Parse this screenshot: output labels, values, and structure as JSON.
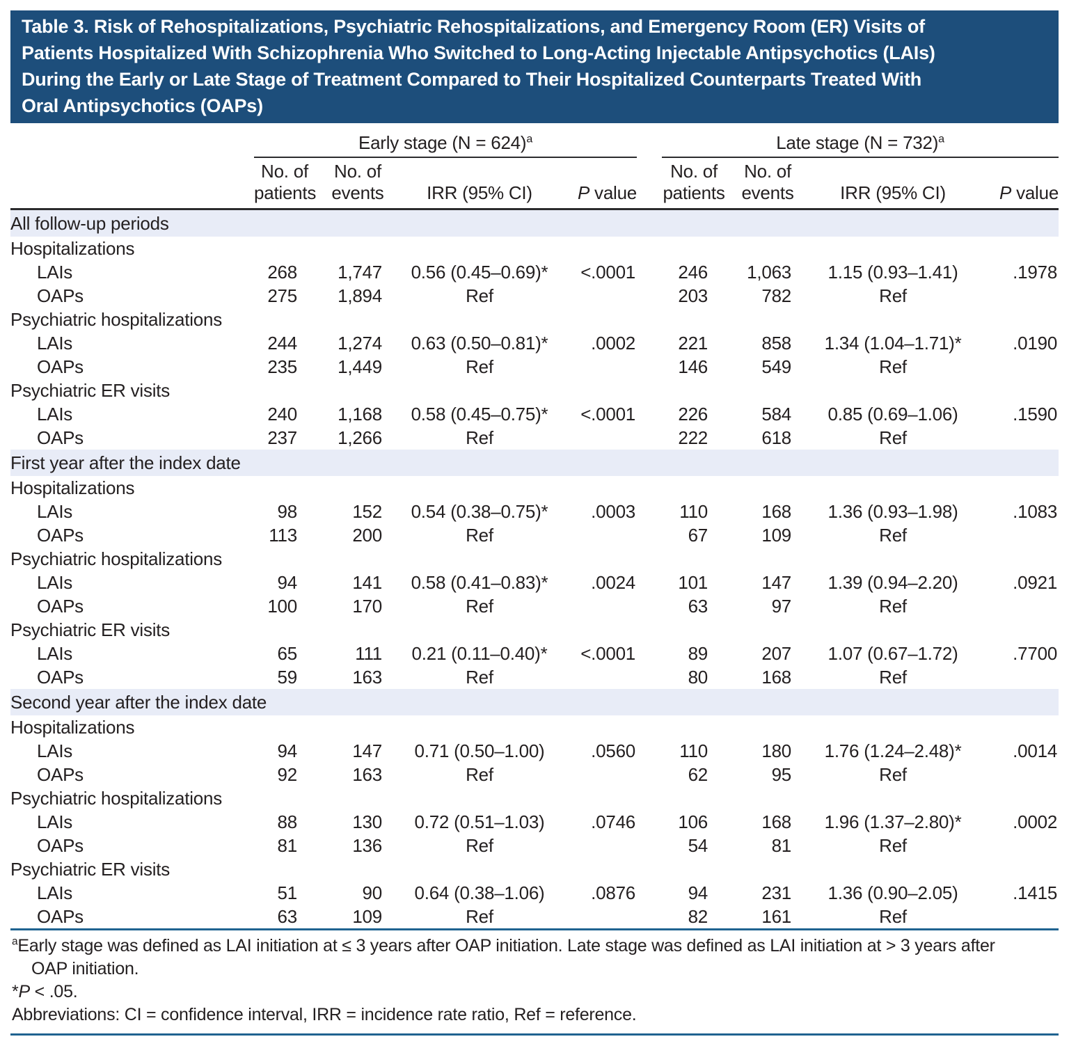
{
  "title": "Table 3. Risk of Rehospitalizations, Psychiatric Rehospitalizations, and Emergency Room (ER) Visits of\nPatients Hospitalized With Schizophrenia Who Switched to Long-Acting Injectable Antipsychotics (LAIs)\nDuring the Early or Late Stage of Treatment Compared to Their Hospitalized Counterparts Treated With\nOral Antipsychotics (OAPs)",
  "header": {
    "early_spanner": "Early stage (N = 624)",
    "late_spanner": "Late stage (N = 732)",
    "spanner_sup": "a",
    "col_patients": "No. of\npatients",
    "col_events": "No. of\nevents",
    "col_irr": "IRR (95% CI)",
    "col_p_italic": "P",
    "col_p_rest": " value"
  },
  "sections": [
    {
      "label": "All follow-up periods",
      "groups": [
        {
          "label": "Hospitalizations",
          "rows": [
            {
              "label": "LAIs",
              "early": {
                "patients": "268",
                "events": "1,747",
                "irr": "0.56 (0.45–0.69)*",
                "p": "<.0001"
              },
              "late": {
                "patients": "246",
                "events": "1,063",
                "irr": "1.15 (0.93–1.41)",
                "p": ".1978"
              }
            },
            {
              "label": "OAPs",
              "early": {
                "patients": "275",
                "events": "1,894",
                "irr": "Ref",
                "p": ""
              },
              "late": {
                "patients": "203",
                "events": "782",
                "irr": "Ref",
                "p": ""
              }
            }
          ]
        },
        {
          "label": "Psychiatric hospitalizations",
          "rows": [
            {
              "label": "LAIs",
              "early": {
                "patients": "244",
                "events": "1,274",
                "irr": "0.63 (0.50–0.81)*",
                "p": ".0002"
              },
              "late": {
                "patients": "221",
                "events": "858",
                "irr": "1.34 (1.04–1.71)*",
                "p": ".0190"
              }
            },
            {
              "label": "OAPs",
              "early": {
                "patients": "235",
                "events": "1,449",
                "irr": "Ref",
                "p": ""
              },
              "late": {
                "patients": "146",
                "events": "549",
                "irr": "Ref",
                "p": ""
              }
            }
          ]
        },
        {
          "label": "Psychiatric ER visits",
          "rows": [
            {
              "label": "LAIs",
              "early": {
                "patients": "240",
                "events": "1,168",
                "irr": "0.58 (0.45–0.75)*",
                "p": "<.0001"
              },
              "late": {
                "patients": "226",
                "events": "584",
                "irr": "0.85 (0.69–1.06)",
                "p": ".1590"
              }
            },
            {
              "label": "OAPs",
              "early": {
                "patients": "237",
                "events": "1,266",
                "irr": "Ref",
                "p": ""
              },
              "late": {
                "patients": "222",
                "events": "618",
                "irr": "Ref",
                "p": ""
              }
            }
          ]
        }
      ]
    },
    {
      "label": "First year after the index date",
      "groups": [
        {
          "label": "Hospitalizations",
          "rows": [
            {
              "label": "LAIs",
              "early": {
                "patients": "98",
                "events": "152",
                "irr": "0.54 (0.38–0.75)*",
                "p": ".0003"
              },
              "late": {
                "patients": "110",
                "events": "168",
                "irr": "1.36 (0.93–1.98)",
                "p": ".1083"
              }
            },
            {
              "label": "OAPs",
              "early": {
                "patients": "113",
                "events": "200",
                "irr": "Ref",
                "p": ""
              },
              "late": {
                "patients": "67",
                "events": "109",
                "irr": "Ref",
                "p": ""
              }
            }
          ]
        },
        {
          "label": "Psychiatric hospitalizations",
          "rows": [
            {
              "label": "LAIs",
              "early": {
                "patients": "94",
                "events": "141",
                "irr": "0.58 (0.41–0.83)*",
                "p": ".0024"
              },
              "late": {
                "patients": "101",
                "events": "147",
                "irr": "1.39 (0.94–2.20)",
                "p": ".0921"
              }
            },
            {
              "label": "OAPs",
              "early": {
                "patients": "100",
                "events": "170",
                "irr": "Ref",
                "p": ""
              },
              "late": {
                "patients": "63",
                "events": "97",
                "irr": "Ref",
                "p": ""
              }
            }
          ]
        },
        {
          "label": "Psychiatric ER visits",
          "rows": [
            {
              "label": "LAIs",
              "early": {
                "patients": "65",
                "events": "111",
                "irr": "0.21 (0.11–0.40)*",
                "p": "<.0001"
              },
              "late": {
                "patients": "89",
                "events": "207",
                "irr": "1.07 (0.67–1.72)",
                "p": ".7700"
              }
            },
            {
              "label": "OAPs",
              "early": {
                "patients": "59",
                "events": "163",
                "irr": "Ref",
                "p": ""
              },
              "late": {
                "patients": "80",
                "events": "168",
                "irr": "Ref",
                "p": ""
              }
            }
          ]
        }
      ]
    },
    {
      "label": "Second year after the index date",
      "groups": [
        {
          "label": "Hospitalizations",
          "rows": [
            {
              "label": "LAIs",
              "early": {
                "patients": "94",
                "events": "147",
                "irr": "0.71 (0.50–1.00)",
                "p": ".0560"
              },
              "late": {
                "patients": "110",
                "events": "180",
                "irr": "1.76 (1.24–2.48)*",
                "p": ".0014"
              }
            },
            {
              "label": "OAPs",
              "early": {
                "patients": "92",
                "events": "163",
                "irr": "Ref",
                "p": ""
              },
              "late": {
                "patients": "62",
                "events": "95",
                "irr": "Ref",
                "p": ""
              }
            }
          ]
        },
        {
          "label": "Psychiatric hospitalizations",
          "rows": [
            {
              "label": "LAIs",
              "early": {
                "patients": "88",
                "events": "130",
                "irr": "0.72 (0.51–1.03)",
                "p": ".0746"
              },
              "late": {
                "patients": "106",
                "events": "168",
                "irr": "1.96 (1.37–2.80)*",
                "p": ".0002"
              }
            },
            {
              "label": "OAPs",
              "early": {
                "patients": "81",
                "events": "136",
                "irr": "Ref",
                "p": ""
              },
              "late": {
                "patients": "54",
                "events": "81",
                "irr": "Ref",
                "p": ""
              }
            }
          ]
        },
        {
          "label": "Psychiatric ER visits",
          "rows": [
            {
              "label": "LAIs",
              "early": {
                "patients": "51",
                "events": "90",
                "irr": "0.64 (0.38–1.06)",
                "p": ".0876"
              },
              "late": {
                "patients": "94",
                "events": "231",
                "irr": "1.36 (0.90–2.05)",
                "p": ".1415"
              }
            },
            {
              "label": "OAPs",
              "early": {
                "patients": "63",
                "events": "109",
                "irr": "Ref",
                "p": ""
              },
              "late": {
                "patients": "82",
                "events": "161",
                "irr": "Ref",
                "p": ""
              }
            }
          ]
        }
      ]
    }
  ],
  "footnotes": {
    "a_sup": "a",
    "a_line1": "Early stage was defined as LAI initiation at ≤ 3 years after OAP initiation. Late stage was defined as LAI initiation at > 3 years after",
    "a_line2": "OAP initiation.",
    "star_prefix": "*",
    "star_p": "P",
    "star_rest": " < .05.",
    "abbreviations": "Abbreviations: CI = confidence interval, IRR = incidence rate ratio, Ref = reference."
  },
  "colors": {
    "title_bg": "#1d4e7b",
    "title_text": "#ffffff",
    "section_band_bg": "#e8ecf7",
    "blue_rule": "#1f6390",
    "dark_rule": "#2b2b2d",
    "body_text": "#231f20"
  }
}
